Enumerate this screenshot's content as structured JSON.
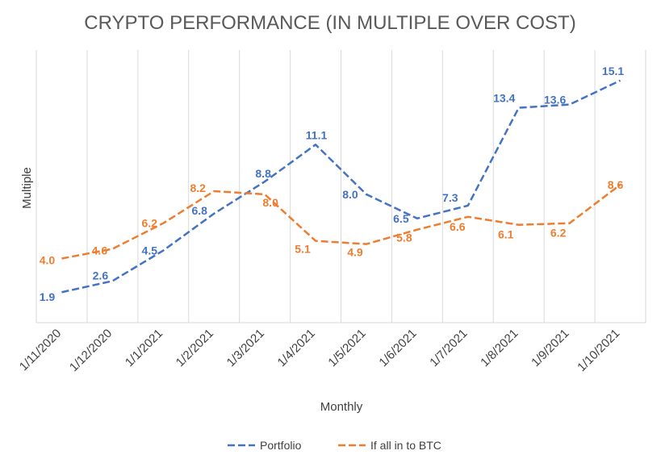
{
  "chart_data": {
    "type": "line",
    "title": "CRYPTO PERFORMANCE (IN MULTIPLE OVER COST)",
    "xlabel": "Monthly",
    "ylabel": "Multiple",
    "categories": [
      "1/11/2020",
      "1/12/2020",
      "1/1/2021",
      "1/2/2021",
      "1/3/2021",
      "1/4/2021",
      "1/5/2021",
      "1/6/2021",
      "1/7/2021",
      "1/8/2021",
      "1/9/2021",
      "1/10/2021"
    ],
    "ylim": [
      0,
      17
    ],
    "grid": "vertical",
    "legend": "bottom",
    "series": [
      {
        "name": "Portfolio",
        "color": "#4472C4",
        "style": "dashed",
        "values": [
          1.9,
          2.6,
          4.5,
          6.8,
          8.8,
          11.1,
          8.0,
          6.5,
          7.3,
          13.4,
          13.6,
          15.1
        ],
        "labels": [
          "1.9",
          "2.6",
          "4.5",
          "6.8",
          "8.8",
          "11.1",
          "8.0",
          "6.5",
          "7.3",
          "13.4",
          "13.6",
          "15.1"
        ]
      },
      {
        "name": "If all in to BTC",
        "color": "#ED7D31",
        "style": "dashed",
        "values": [
          4.0,
          4.6,
          6.2,
          8.2,
          8.0,
          5.1,
          4.9,
          5.8,
          6.6,
          6.1,
          6.2,
          8.6
        ],
        "labels": [
          "4.0",
          "4.6",
          "6.2",
          "8.2",
          "8.0",
          "5.1",
          "4.9",
          "5.8",
          "6.6",
          "6.1",
          "6.2",
          "8.6"
        ]
      }
    ]
  }
}
